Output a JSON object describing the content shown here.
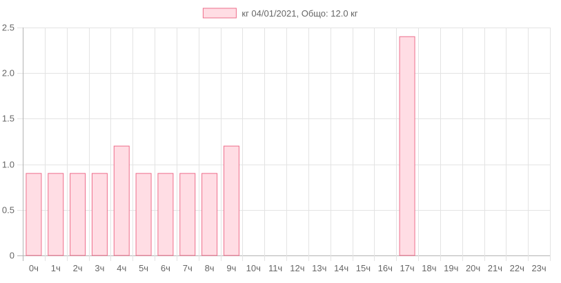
{
  "chart_data": {
    "type": "bar",
    "title": "",
    "xlabel": "",
    "ylabel": "",
    "legend": {
      "position": "top",
      "label": "кг 04/01/2021, Общо: 12.0 кг"
    },
    "categories": [
      "0ч",
      "1ч",
      "2ч",
      "3ч",
      "4ч",
      "5ч",
      "6ч",
      "7ч",
      "8ч",
      "9ч",
      "10ч",
      "11ч",
      "12ч",
      "13ч",
      "14ч",
      "15ч",
      "16ч",
      "17ч",
      "18ч",
      "19ч",
      "20ч",
      "21ч",
      "22ч",
      "23ч"
    ],
    "series": [
      {
        "name": "кг 04/01/2021, Общо: 12.0 кг",
        "values": [
          0.9,
          0.9,
          0.9,
          0.9,
          1.2,
          0.9,
          0.9,
          0.9,
          0.9,
          1.2,
          0,
          0,
          0,
          0,
          0,
          0,
          0,
          2.4,
          0,
          0,
          0,
          0,
          0,
          0
        ]
      }
    ],
    "ylim": [
      0,
      2.5
    ],
    "yticks": [
      "0",
      "0.5",
      "1.0",
      "1.5",
      "2.0",
      "2.5"
    ],
    "grid": true,
    "colors": {
      "bar_fill": "#ffdde4",
      "bar_stroke": "#ee6d8a",
      "grid": "#e3e3e3",
      "axis": "#b3b3b3",
      "text": "#666666"
    }
  }
}
